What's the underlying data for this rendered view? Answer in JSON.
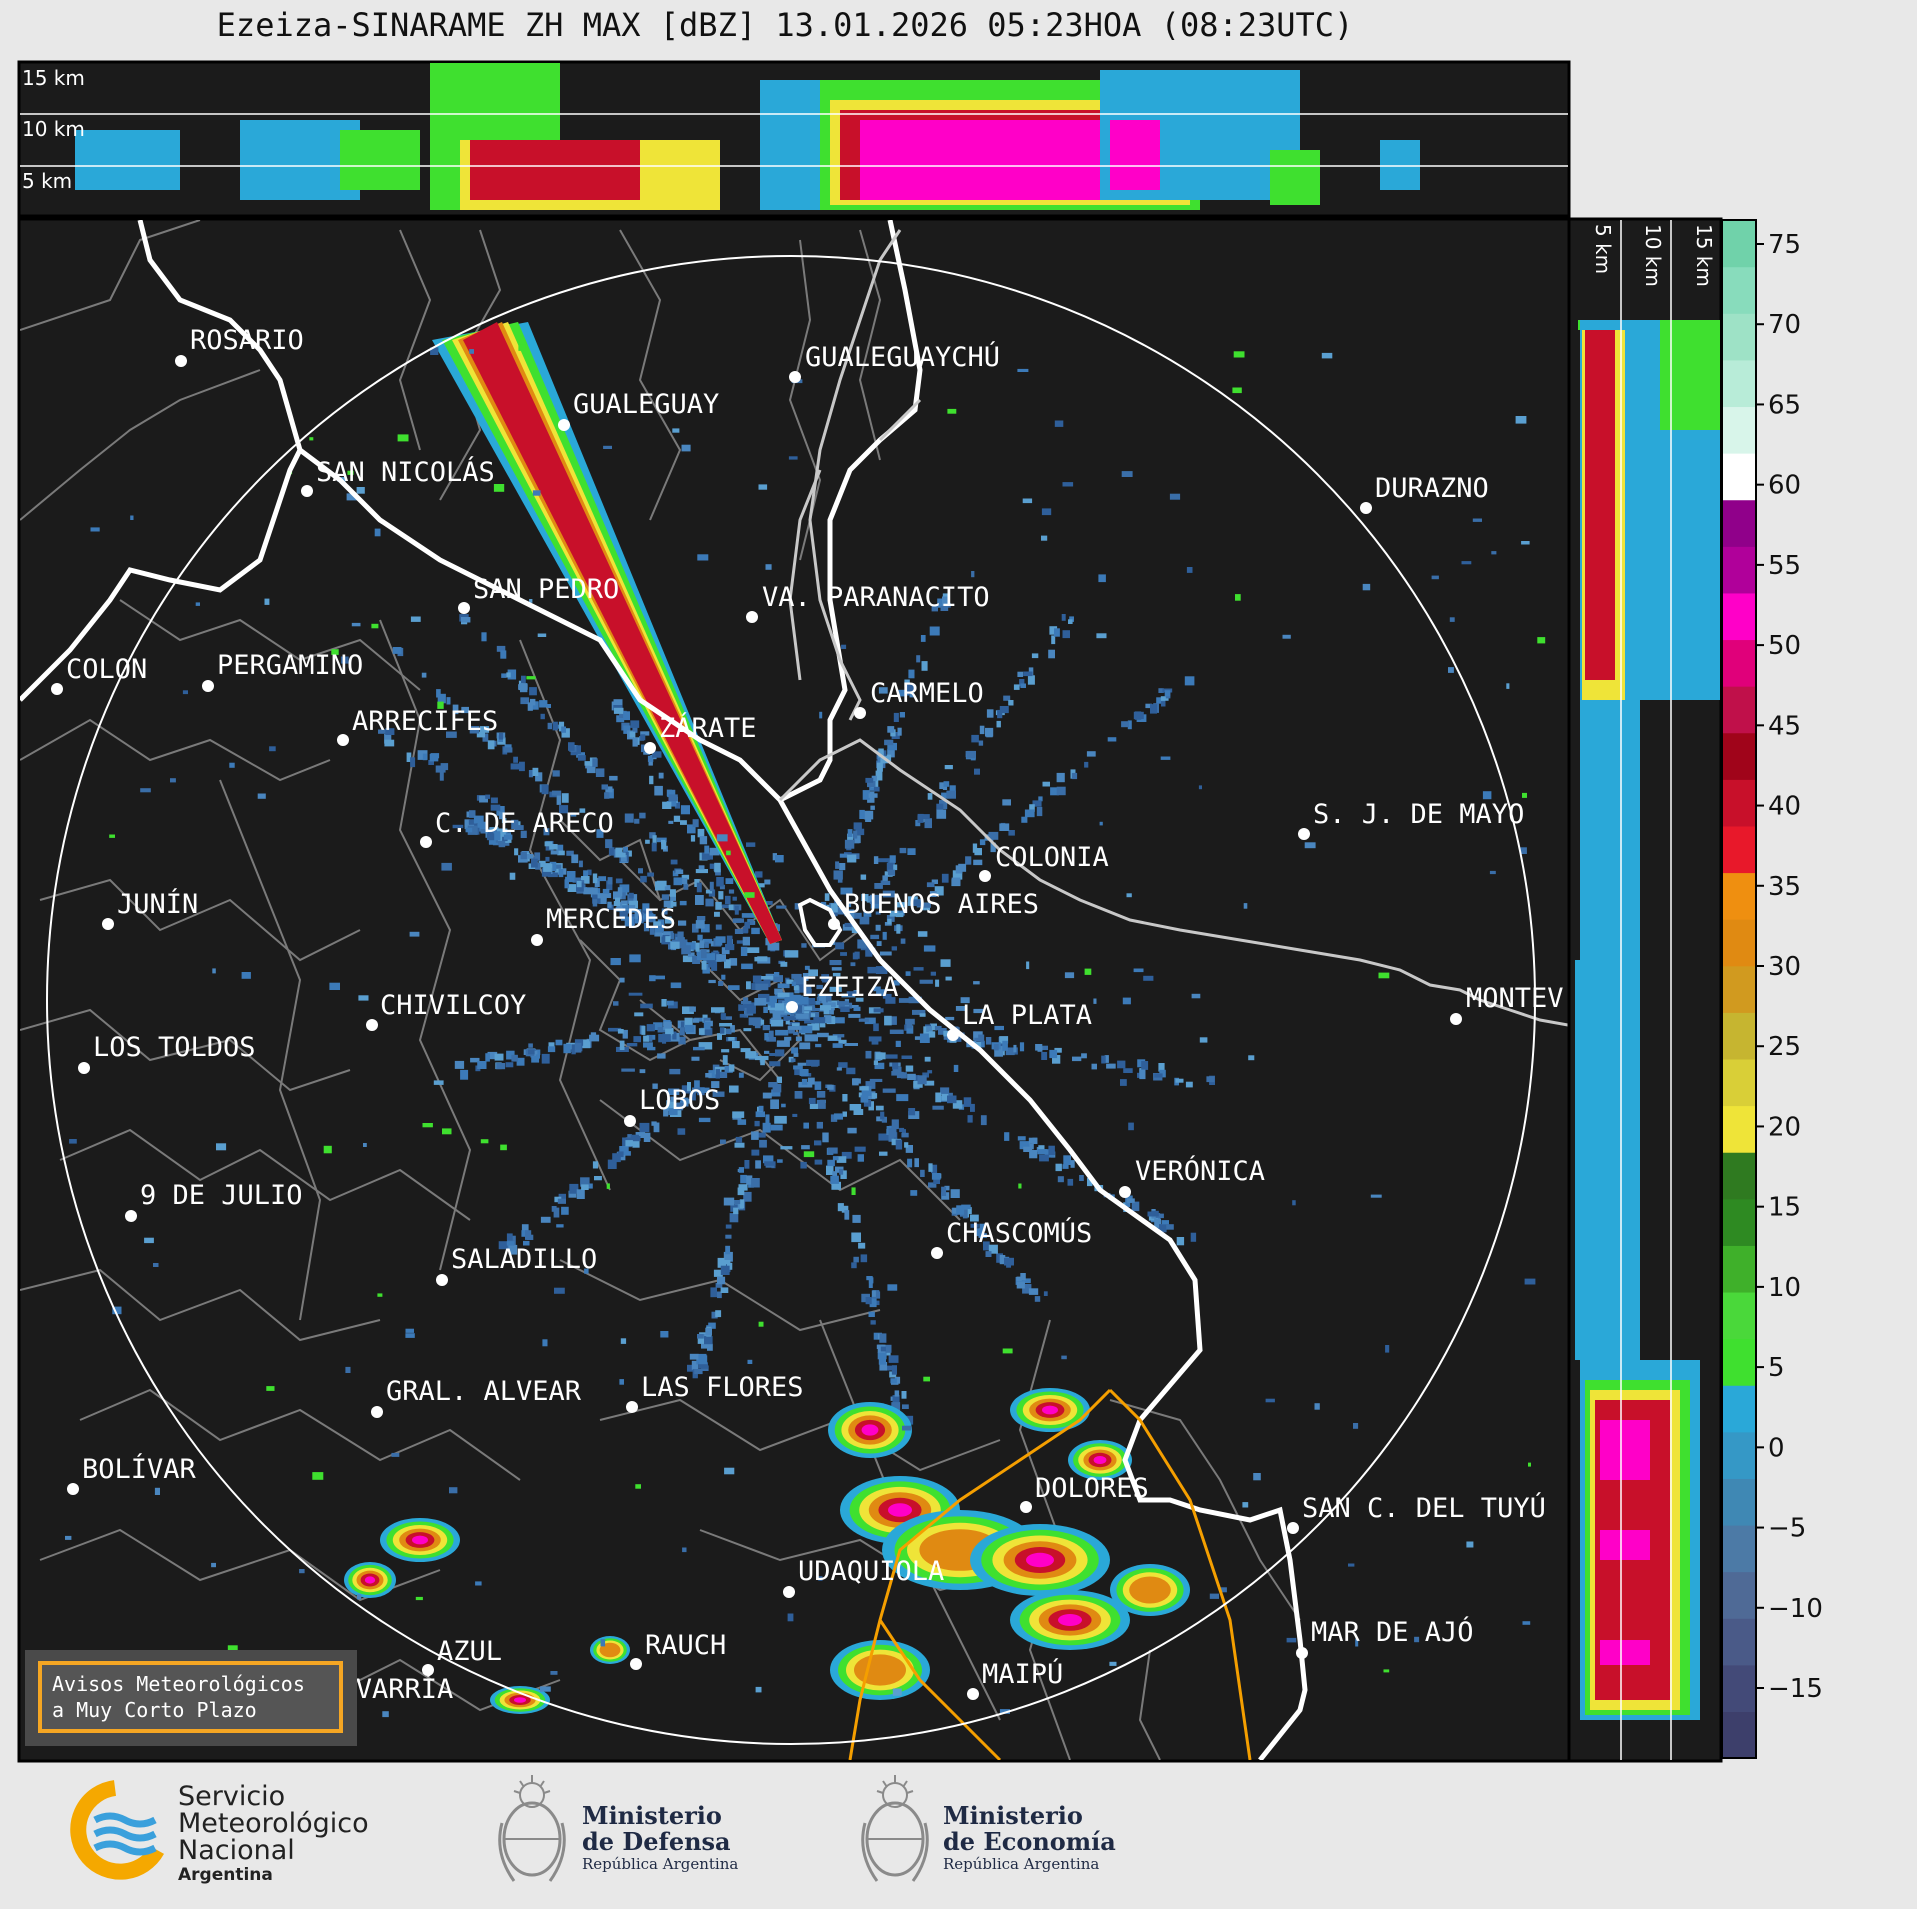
{
  "title": "Ezeiza-SINARAME ZH MAX [dBZ] 13.01.2026 05:23HOA (08:23UTC)",
  "top_panel": {
    "height_labels": [
      "15 km",
      "10 km",
      "5 km"
    ]
  },
  "side_panel": {
    "height_labels": [
      "5 km",
      "10 km",
      "15 km"
    ]
  },
  "colorbar": {
    "ticks": [
      "75",
      "70",
      "65",
      "60",
      "55",
      "50",
      "45",
      "40",
      "35",
      "30",
      "25",
      "20",
      "15",
      "10",
      "5",
      "0",
      "−5",
      "−10",
      "−15"
    ],
    "colors": [
      "#3d3f6b",
      "#434a78",
      "#4a5a88",
      "#4f6a96",
      "#4c7aa6",
      "#3f88b4",
      "#3598c6",
      "#2aa8d8",
      "#3fe02f",
      "#4ad83a",
      "#3fb02a",
      "#2e8a22",
      "#2f7a20",
      "#efe438",
      "#d9cf37",
      "#c6b530",
      "#d19a1f",
      "#e08a12",
      "#ef8f10",
      "#e8182a",
      "#c8102a",
      "#a0041a",
      "#c0104a",
      "#e0007a",
      "#ff00c8",
      "#b0009a",
      "#90008a",
      "#ffffff",
      "#d8f5ea",
      "#b8ecd8",
      "#9ee2c6",
      "#88dcbc",
      "#70d2aa"
    ]
  },
  "cities": [
    {
      "name": "ROSARIO"
    },
    {
      "name": "GUALEGUAYCHÚ"
    },
    {
      "name": "GUALEGUAY"
    },
    {
      "name": "SAN NICOLÁS"
    },
    {
      "name": "DURAZNO"
    },
    {
      "name": "SAN PEDRO"
    },
    {
      "name": "VA. PARANACITO"
    },
    {
      "name": "COLON"
    },
    {
      "name": "PERGAMINO"
    },
    {
      "name": "CARMELO"
    },
    {
      "name": "ARRECIFES"
    },
    {
      "name": "ZÁRATE"
    },
    {
      "name": "S. J. DE MAYO"
    },
    {
      "name": "C. DE ARECO"
    },
    {
      "name": "COLONIA"
    },
    {
      "name": "BUENOS AIRES"
    },
    {
      "name": "JUNÍN"
    },
    {
      "name": "MERCEDES"
    },
    {
      "name": "MONTEV"
    },
    {
      "name": "EZEIZA"
    },
    {
      "name": "CHIVILCOY"
    },
    {
      "name": "LA PLATA"
    },
    {
      "name": "LOS TOLDOS"
    },
    {
      "name": "LOBOS"
    },
    {
      "name": "VERÓNICA"
    },
    {
      "name": "9 DE JULIO"
    },
    {
      "name": "CHASCOMÚS"
    },
    {
      "name": "SALADILLO"
    },
    {
      "name": "GRAL. ALVEAR"
    },
    {
      "name": "LAS FLORES"
    },
    {
      "name": "BOLÍVAR"
    },
    {
      "name": "DOLORES"
    },
    {
      "name": "SAN C. DEL TUYÚ"
    },
    {
      "name": "UDAQUIOLA"
    },
    {
      "name": "MAR DE AJÓ"
    },
    {
      "name": "AZUL"
    },
    {
      "name": "RAUCH"
    },
    {
      "name": "MAIPÚ"
    },
    {
      "name": "OLAVARRÍA"
    }
  ],
  "warning_button": {
    "line1": "Avisos Meteorológicos",
    "line2": "a Muy Corto Plazo"
  },
  "footer": {
    "smn": {
      "line1": "Servicio",
      "line2": "Meteorológico",
      "line3": "Nacional",
      "line4": "Argentina"
    },
    "defensa": {
      "line1": "Ministerio",
      "line2": "de Defensa",
      "line3": "República Argentina"
    },
    "economia": {
      "line1": "Ministerio",
      "line2": "de Economía",
      "line3": "República Argentina"
    }
  }
}
